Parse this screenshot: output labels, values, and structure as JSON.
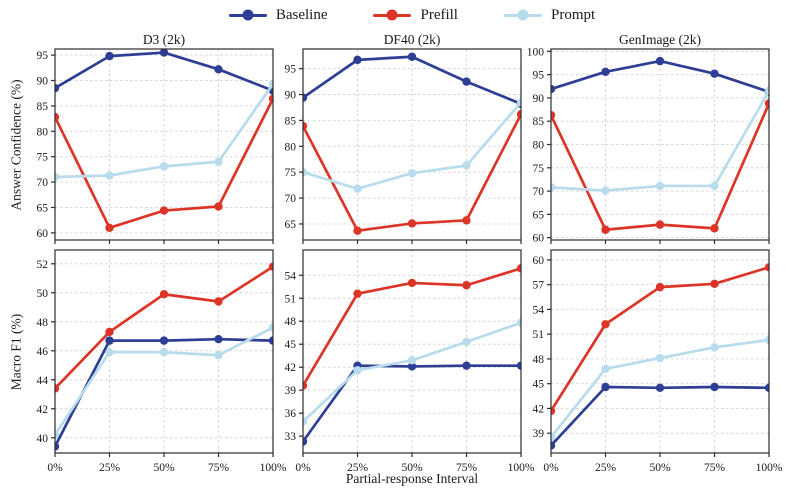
{
  "figure": {
    "x_title": "Partial-response Interval",
    "row_labels": [
      "Answer Confidence (%)",
      "Macro F1 (%)"
    ],
    "legend_position": "top-center",
    "grid": "dashed"
  },
  "legend": {
    "items": [
      {
        "label": "Baseline",
        "color": "#2d3e94"
      },
      {
        "label": "Prefill",
        "color": "#dc3528"
      },
      {
        "label": "Prompt",
        "color": "#b9dcec"
      }
    ]
  },
  "chart_data": [
    {
      "type": "line",
      "id": "d3-confidence",
      "row": 0,
      "col": 0,
      "title": "D3 (2k)",
      "x": [
        0,
        25,
        50,
        75,
        100
      ],
      "x_tick_labels": [
        "0%",
        "25%",
        "50%",
        "75%",
        "100%"
      ],
      "ylim": [
        58.6,
        96.2
      ],
      "yticks": [
        60,
        65,
        70,
        75,
        80,
        85,
        90,
        95
      ],
      "series": [
        {
          "name": "Baseline",
          "values": [
            88.5,
            94.8,
            95.5,
            92.2,
            88.0
          ]
        },
        {
          "name": "Prefill",
          "values": [
            82.8,
            61.0,
            64.4,
            65.2,
            86.4
          ]
        },
        {
          "name": "Prompt",
          "values": [
            71.0,
            71.3,
            73.1,
            74.0,
            89.3
          ]
        }
      ]
    },
    {
      "type": "line",
      "id": "df40-confidence",
      "row": 0,
      "col": 1,
      "title": "DF40 (2k)",
      "x": [
        0,
        25,
        50,
        75,
        100
      ],
      "x_tick_labels": [
        "0%",
        "25%",
        "50%",
        "75%",
        "100%"
      ],
      "ylim": [
        61.9,
        98.8
      ],
      "yticks": [
        65,
        70,
        75,
        80,
        85,
        90,
        95
      ],
      "series": [
        {
          "name": "Baseline",
          "values": [
            89.4,
            96.7,
            97.3,
            92.5,
            88.2
          ]
        },
        {
          "name": "Prefill",
          "values": [
            83.9,
            63.7,
            65.1,
            65.7,
            86.2
          ]
        },
        {
          "name": "Prompt",
          "values": [
            75.0,
            71.8,
            74.8,
            76.3,
            88.5
          ]
        }
      ]
    },
    {
      "type": "line",
      "id": "genimage-confidence",
      "row": 0,
      "col": 2,
      "title": "GenImage (2k)",
      "x": [
        0,
        25,
        50,
        75,
        100
      ],
      "x_tick_labels": [
        "0%",
        "25%",
        "50%",
        "75%",
        "100%"
      ],
      "ylim": [
        59.5,
        100.5
      ],
      "yticks": [
        60,
        65,
        70,
        75,
        80,
        85,
        90,
        95,
        100
      ],
      "series": [
        {
          "name": "Baseline",
          "values": [
            91.9,
            95.6,
            97.9,
            95.2,
            91.3
          ]
        },
        {
          "name": "Prefill",
          "values": [
            86.3,
            61.7,
            62.8,
            62.0,
            88.8
          ]
        },
        {
          "name": "Prompt",
          "values": [
            70.8,
            70.1,
            71.1,
            71.1,
            91.5
          ]
        }
      ]
    },
    {
      "type": "line",
      "id": "d3-f1",
      "row": 1,
      "col": 0,
      "title": "",
      "x": [
        0,
        25,
        50,
        75,
        100
      ],
      "x_tick_labels": [
        "0%",
        "25%",
        "50%",
        "75%",
        "100%"
      ],
      "ylim": [
        38.95,
        52.95
      ],
      "yticks": [
        40,
        42,
        44,
        46,
        48,
        50,
        52
      ],
      "series": [
        {
          "name": "Baseline",
          "values": [
            39.4,
            46.7,
            46.7,
            46.8,
            46.7
          ]
        },
        {
          "name": "Prefill",
          "values": [
            43.4,
            47.3,
            49.9,
            49.4,
            51.8
          ]
        },
        {
          "name": "Prompt",
          "values": [
            40.2,
            45.9,
            45.9,
            45.7,
            47.6
          ]
        }
      ]
    },
    {
      "type": "line",
      "id": "df40-f1",
      "row": 1,
      "col": 1,
      "title": "",
      "x": [
        0,
        25,
        50,
        75,
        100
      ],
      "x_tick_labels": [
        "0%",
        "25%",
        "50%",
        "75%",
        "100%"
      ],
      "ylim": [
        30.8,
        57.3
      ],
      "yticks": [
        33,
        36,
        39,
        42,
        45,
        48,
        51,
        54
      ],
      "series": [
        {
          "name": "Baseline",
          "values": [
            32.3,
            42.2,
            42.1,
            42.2,
            42.2
          ]
        },
        {
          "name": "Prefill",
          "values": [
            39.6,
            51.6,
            53.0,
            52.7,
            54.9
          ]
        },
        {
          "name": "Prompt",
          "values": [
            34.9,
            41.6,
            42.9,
            45.3,
            47.8
          ]
        }
      ]
    },
    {
      "type": "line",
      "id": "genimage-f1",
      "row": 1,
      "col": 2,
      "title": "",
      "x": [
        0,
        25,
        50,
        75,
        100
      ],
      "x_tick_labels": [
        "0%",
        "25%",
        "50%",
        "75%",
        "100%"
      ],
      "ylim": [
        36.6,
        61.2
      ],
      "yticks": [
        39,
        42,
        45,
        48,
        51,
        54,
        57,
        60
      ],
      "series": [
        {
          "name": "Baseline",
          "values": [
            37.5,
            44.6,
            44.5,
            44.6,
            44.5
          ]
        },
        {
          "name": "Prefill",
          "values": [
            41.7,
            52.2,
            56.7,
            57.1,
            59.1
          ]
        },
        {
          "name": "Prompt",
          "values": [
            38.5,
            46.8,
            48.1,
            49.4,
            50.3
          ]
        }
      ]
    }
  ]
}
